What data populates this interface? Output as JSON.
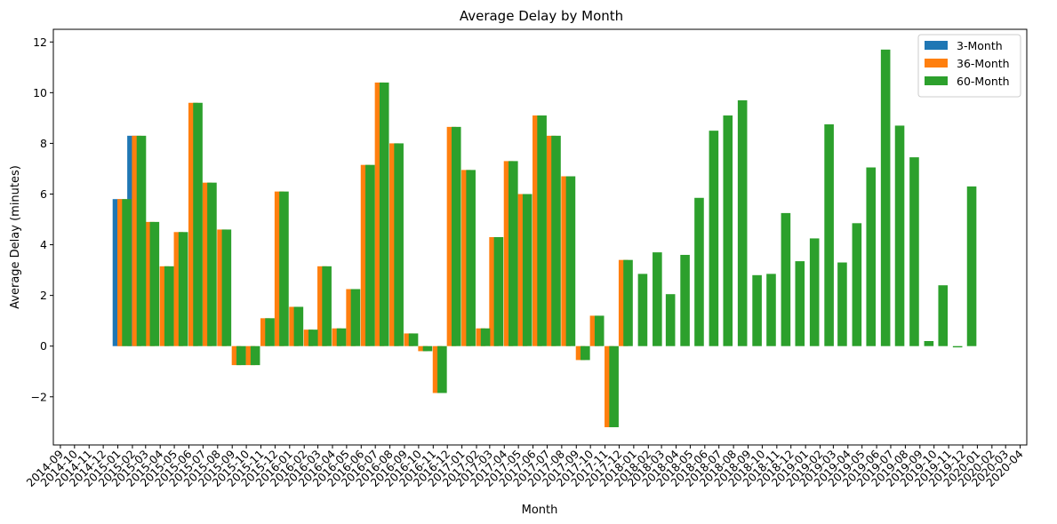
{
  "chart_data": {
    "type": "bar",
    "title": "Average Delay by Month",
    "xlabel": "Month",
    "ylabel": "Average Delay (minutes)",
    "ylim": [
      -3.9,
      12.5
    ],
    "yticks": [
      -2,
      0,
      2,
      4,
      6,
      8,
      10,
      12
    ],
    "xlim_dates": [
      "2014-08-17",
      "2020-04-15"
    ],
    "x_tick_labels": [
      "2014-09",
      "2014-10",
      "2014-11",
      "2014-12",
      "2015-01",
      "2015-02",
      "2015-03",
      "2015-04",
      "2015-05",
      "2015-06",
      "2015-07",
      "2015-08",
      "2015-09",
      "2015-10",
      "2015-11",
      "2015-12",
      "2016-01",
      "2016-02",
      "2016-03",
      "2016-04",
      "2016-05",
      "2016-06",
      "2016-07",
      "2016-08",
      "2016-09",
      "2016-10",
      "2016-11",
      "2016-12",
      "2017-01",
      "2017-02",
      "2017-03",
      "2017-04",
      "2017-05",
      "2017-06",
      "2017-07",
      "2017-08",
      "2017-09",
      "2017-10",
      "2017-11",
      "2017-12",
      "2018-01",
      "2018-02",
      "2018-03",
      "2018-04",
      "2018-05",
      "2018-06",
      "2018-07",
      "2018-08",
      "2018-09",
      "2018-10",
      "2018-11",
      "2018-12",
      "2019-01",
      "2019-02",
      "2019-03",
      "2019-04",
      "2019-05",
      "2019-06",
      "2019-07",
      "2019-08",
      "2019-09",
      "2019-10",
      "2019-11",
      "2019-12",
      "2020-01",
      "2020-02",
      "2020-03",
      "2020-04"
    ],
    "legend_position": "top-right",
    "series": [
      {
        "name": "3-Month",
        "color": "#1f77b4",
        "points": [
          {
            "x": "2014-12-31",
            "y": 5.8
          },
          {
            "x": "2015-01-31",
            "y": 8.3
          }
        ]
      },
      {
        "name": "36-Month",
        "color": "#ff7f0e",
        "points": [
          {
            "x": "2014-12-31",
            "y": 5.8
          },
          {
            "x": "2015-01-31",
            "y": 8.3
          },
          {
            "x": "2015-02-28",
            "y": 4.9
          },
          {
            "x": "2015-03-31",
            "y": 3.15
          },
          {
            "x": "2015-04-30",
            "y": 4.5
          },
          {
            "x": "2015-05-31",
            "y": 9.6
          },
          {
            "x": "2015-06-30",
            "y": 6.45
          },
          {
            "x": "2015-07-31",
            "y": 4.6
          },
          {
            "x": "2015-08-31",
            "y": -0.75
          },
          {
            "x": "2015-09-30",
            "y": -0.75
          },
          {
            "x": "2015-10-31",
            "y": 1.1
          },
          {
            "x": "2015-11-30",
            "y": 6.1
          },
          {
            "x": "2015-12-31",
            "y": 1.55
          },
          {
            "x": "2016-01-31",
            "y": 0.65
          },
          {
            "x": "2016-02-29",
            "y": 3.15
          },
          {
            "x": "2016-03-31",
            "y": 0.7
          },
          {
            "x": "2016-04-30",
            "y": 2.25
          },
          {
            "x": "2016-05-31",
            "y": 7.15
          },
          {
            "x": "2016-06-30",
            "y": 10.4
          },
          {
            "x": "2016-07-31",
            "y": 8.0
          },
          {
            "x": "2016-08-31",
            "y": 0.5
          },
          {
            "x": "2016-09-30",
            "y": -0.2
          },
          {
            "x": "2016-10-31",
            "y": -1.85
          },
          {
            "x": "2016-11-30",
            "y": 8.65
          },
          {
            "x": "2016-12-31",
            "y": 6.95
          },
          {
            "x": "2017-01-31",
            "y": 0.7
          },
          {
            "x": "2017-02-28",
            "y": 4.3
          },
          {
            "x": "2017-03-31",
            "y": 7.3
          },
          {
            "x": "2017-04-30",
            "y": 6.0
          },
          {
            "x": "2017-05-31",
            "y": 9.1
          },
          {
            "x": "2017-06-30",
            "y": 8.3
          },
          {
            "x": "2017-07-31",
            "y": 6.7
          },
          {
            "x": "2017-08-31",
            "y": -0.55
          },
          {
            "x": "2017-09-30",
            "y": 1.2
          },
          {
            "x": "2017-10-31",
            "y": -3.2
          },
          {
            "x": "2017-11-30",
            "y": 3.4
          }
        ]
      },
      {
        "name": "60-Month",
        "color": "#2ca02c",
        "points": [
          {
            "x": "2014-12-31",
            "y": 5.8
          },
          {
            "x": "2015-01-31",
            "y": 8.3
          },
          {
            "x": "2015-02-28",
            "y": 4.9
          },
          {
            "x": "2015-03-31",
            "y": 3.15
          },
          {
            "x": "2015-04-30",
            "y": 4.5
          },
          {
            "x": "2015-05-31",
            "y": 9.6
          },
          {
            "x": "2015-06-30",
            "y": 6.45
          },
          {
            "x": "2015-07-31",
            "y": 4.6
          },
          {
            "x": "2015-08-31",
            "y": -0.75
          },
          {
            "x": "2015-09-30",
            "y": -0.75
          },
          {
            "x": "2015-10-31",
            "y": 1.1
          },
          {
            "x": "2015-11-30",
            "y": 6.1
          },
          {
            "x": "2015-12-31",
            "y": 1.55
          },
          {
            "x": "2016-01-31",
            "y": 0.65
          },
          {
            "x": "2016-02-29",
            "y": 3.15
          },
          {
            "x": "2016-03-31",
            "y": 0.7
          },
          {
            "x": "2016-04-30",
            "y": 2.25
          },
          {
            "x": "2016-05-31",
            "y": 7.15
          },
          {
            "x": "2016-06-30",
            "y": 10.4
          },
          {
            "x": "2016-07-31",
            "y": 8.0
          },
          {
            "x": "2016-08-31",
            "y": 0.5
          },
          {
            "x": "2016-09-30",
            "y": -0.2
          },
          {
            "x": "2016-10-31",
            "y": -1.85
          },
          {
            "x": "2016-11-30",
            "y": 8.65
          },
          {
            "x": "2016-12-31",
            "y": 6.95
          },
          {
            "x": "2017-01-31",
            "y": 0.7
          },
          {
            "x": "2017-02-28",
            "y": 4.3
          },
          {
            "x": "2017-03-31",
            "y": 7.3
          },
          {
            "x": "2017-04-30",
            "y": 6.0
          },
          {
            "x": "2017-05-31",
            "y": 9.1
          },
          {
            "x": "2017-06-30",
            "y": 8.3
          },
          {
            "x": "2017-07-31",
            "y": 6.7
          },
          {
            "x": "2017-08-31",
            "y": -0.55
          },
          {
            "x": "2017-09-30",
            "y": 1.2
          },
          {
            "x": "2017-10-31",
            "y": -3.2
          },
          {
            "x": "2017-11-30",
            "y": 3.4
          },
          {
            "x": "2017-12-31",
            "y": 2.85
          },
          {
            "x": "2018-01-31",
            "y": 3.7
          },
          {
            "x": "2018-02-28",
            "y": 2.05
          },
          {
            "x": "2018-03-31",
            "y": 3.6
          },
          {
            "x": "2018-04-30",
            "y": 5.85
          },
          {
            "x": "2018-05-31",
            "y": 8.5
          },
          {
            "x": "2018-06-30",
            "y": 9.1
          },
          {
            "x": "2018-07-31",
            "y": 9.7
          },
          {
            "x": "2018-08-31",
            "y": 2.8
          },
          {
            "x": "2018-09-30",
            "y": 2.85
          },
          {
            "x": "2018-10-31",
            "y": 5.25
          },
          {
            "x": "2018-11-30",
            "y": 3.35
          },
          {
            "x": "2018-12-31",
            "y": 4.25
          },
          {
            "x": "2019-01-31",
            "y": 8.75
          },
          {
            "x": "2019-02-28",
            "y": 3.3
          },
          {
            "x": "2019-03-31",
            "y": 4.85
          },
          {
            "x": "2019-04-30",
            "y": 7.05
          },
          {
            "x": "2019-05-31",
            "y": 11.7
          },
          {
            "x": "2019-06-30",
            "y": 8.7
          },
          {
            "x": "2019-07-31",
            "y": 7.45
          },
          {
            "x": "2019-08-31",
            "y": 0.2
          },
          {
            "x": "2019-09-30",
            "y": 2.4
          },
          {
            "x": "2019-10-31",
            "y": -0.05
          },
          {
            "x": "2019-11-30",
            "y": 6.3
          }
        ]
      }
    ]
  }
}
